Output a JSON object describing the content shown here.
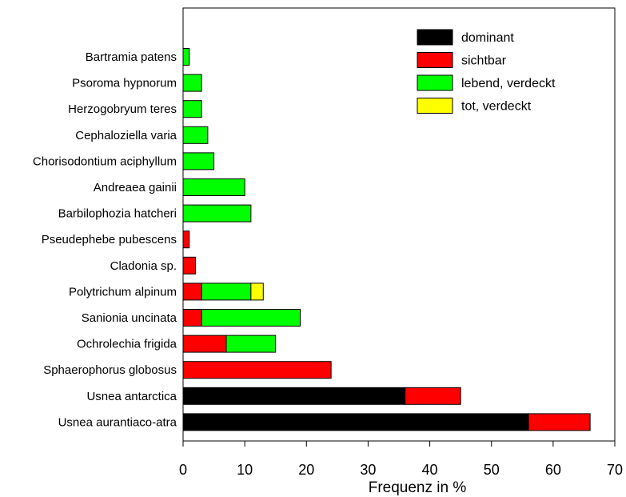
{
  "chart_data": {
    "type": "bar",
    "orientation": "horizontal",
    "stacked": true,
    "xlabel": "Frequenz in %",
    "xlim": [
      0,
      70
    ],
    "xticks": [
      "0",
      "10",
      "20",
      "30",
      "40",
      "50",
      "60",
      "70"
    ],
    "grid": false,
    "legend_position": "top-right",
    "categories": [
      "Bartramia patens",
      "Psoroma hypnorum",
      "Herzogobryum teres",
      "Cephaloziella varia",
      "Chorisodontium aciphyllum",
      "Andreaea gainii",
      "Barbilophozia hatcheri",
      "Pseudephebe pubescens",
      "Cladonia sp.",
      "Polytrichum alpinum",
      "Sanionia uncinata",
      "Ochrolechia frigida",
      "Sphaerophorus globosus",
      "Usnea antarctica",
      "Usnea aurantiaco-atra"
    ],
    "series": [
      {
        "name": "dominant",
        "color": "#000000",
        "values": [
          0,
          0,
          0,
          0,
          0,
          0,
          0,
          0,
          0,
          0,
          0,
          0,
          0,
          36,
          56
        ]
      },
      {
        "name": "sichtbar",
        "color": "#ff0000",
        "values": [
          0,
          0,
          0,
          0,
          0,
          0,
          0,
          1,
          2,
          3,
          3,
          7,
          24,
          9,
          10
        ]
      },
      {
        "name": "lebend, verdeckt",
        "color": "#00ff00",
        "values": [
          1,
          3,
          3,
          4,
          5,
          10,
          11,
          0,
          0,
          8,
          16,
          8,
          0,
          0,
          0
        ]
      },
      {
        "name": "tot, verdeckt",
        "color": "#ffff00",
        "values": [
          0,
          0,
          0,
          0,
          0,
          0,
          0,
          0,
          0,
          2,
          0,
          0,
          0,
          0,
          0
        ]
      }
    ]
  }
}
